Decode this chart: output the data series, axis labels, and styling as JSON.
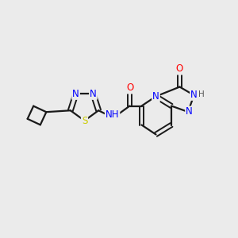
{
  "background_color": "#ebebeb",
  "bond_color": "#1a1a1a",
  "atom_colors": {
    "N": "#0000ff",
    "O": "#ff0000",
    "S": "#cccc00",
    "H_color": "#555555"
  },
  "figsize": [
    3.0,
    3.0
  ],
  "dpi": 100
}
